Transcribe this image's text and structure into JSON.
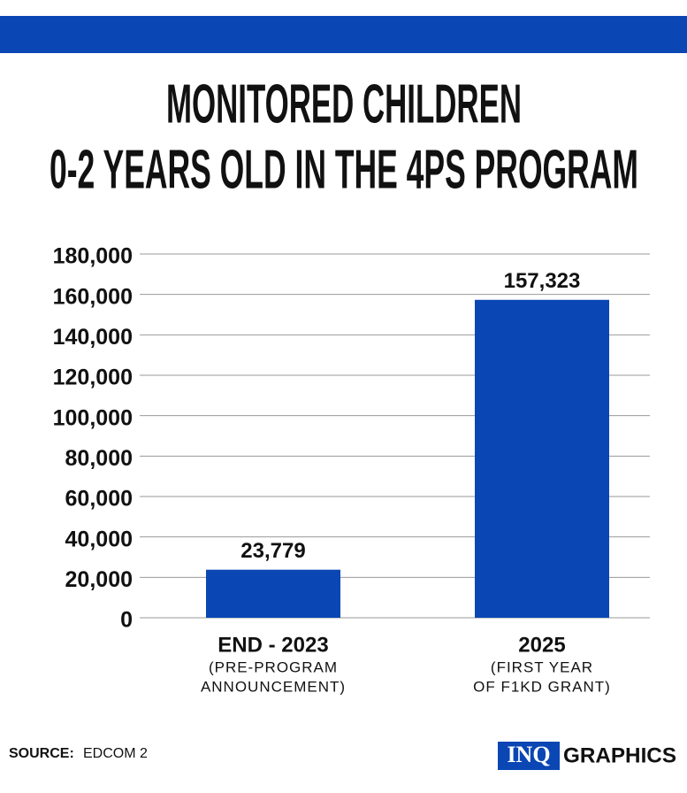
{
  "chart_data": {
    "type": "bar",
    "title_lines": [
      "MONITORED CHILDREN",
      "0-2 YEARS OLD IN THE 4PS PROGRAM"
    ],
    "categories": [
      "END - 2023",
      "2025"
    ],
    "category_notes": [
      [
        "(PRE-PROGRAM",
        "ANNOUNCEMENT)"
      ],
      [
        "(FIRST YEAR",
        "OF F1KD GRANT)"
      ]
    ],
    "values": [
      23779,
      157323
    ],
    "value_labels": [
      "23,779",
      "157,323"
    ],
    "color": "#0a46b4",
    "ylim": [
      0,
      180000
    ],
    "yticks": [
      0,
      {
        "value": 20000,
        "label": "20,000"
      },
      {
        "value": 40000,
        "label": "40,000"
      },
      {
        "value": 60000,
        "label": "60,000"
      },
      {
        "value": 80000,
        "label": "80,000"
      },
      {
        "value": 100000,
        "label": "100,000"
      },
      {
        "value": 120000,
        "label": "120,000"
      },
      {
        "value": 140000,
        "label": "140,000"
      },
      {
        "value": 160000,
        "label": "160,000"
      },
      {
        "value": 180000,
        "label": "180,000"
      }
    ],
    "grid": true,
    "source_label": "SOURCE:",
    "source": "EDCOM 2",
    "logo": [
      "INQ",
      "GRAPHICS"
    ]
  }
}
